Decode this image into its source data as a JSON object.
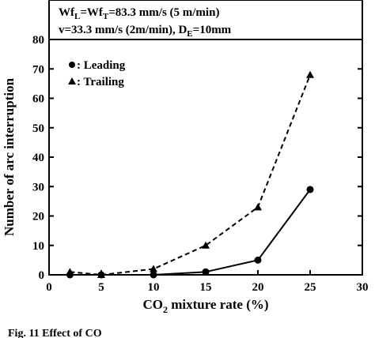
{
  "chart_data": {
    "type": "line",
    "title": "",
    "conditions": {
      "line1_prefix": "Wf",
      "line1_sub1": "L",
      "line1_mid": "=Wf",
      "line1_sub2": "T",
      "line1_rest": "=83.3 mm/s (5 m/min)",
      "line2_prefix": "v=33.3 mm/s (2m/min), D",
      "line2_sub": "E",
      "line2_rest": "=10mm"
    },
    "xlabel_main": "CO",
    "xlabel_sub": "2",
    "xlabel_rest": " mixture rate (%)",
    "ylabel": "Number of arc interruption",
    "xlim": [
      0,
      30
    ],
    "ylim": [
      0,
      80
    ],
    "xticks": [
      "0",
      "5",
      "10",
      "15",
      "20",
      "25",
      "30"
    ],
    "yticks": [
      "0",
      "10",
      "20",
      "30",
      "40",
      "50",
      "60",
      "70",
      "80"
    ],
    "grid": false,
    "legend_position": "top-left",
    "series": [
      {
        "name": ": Leading",
        "marker": "circle",
        "line_style": "solid",
        "x": [
          2,
          5,
          10,
          15,
          20,
          25
        ],
        "y": [
          0,
          0,
          0,
          1,
          5,
          29
        ]
      },
      {
        "name": ": Trailing",
        "marker": "triangle",
        "line_style": "dashed",
        "x": [
          2,
          5,
          10,
          15,
          20,
          25
        ],
        "y": [
          1,
          0,
          2,
          10,
          23,
          68
        ]
      }
    ]
  },
  "caption": "Fig. 11   Effect of CO"
}
